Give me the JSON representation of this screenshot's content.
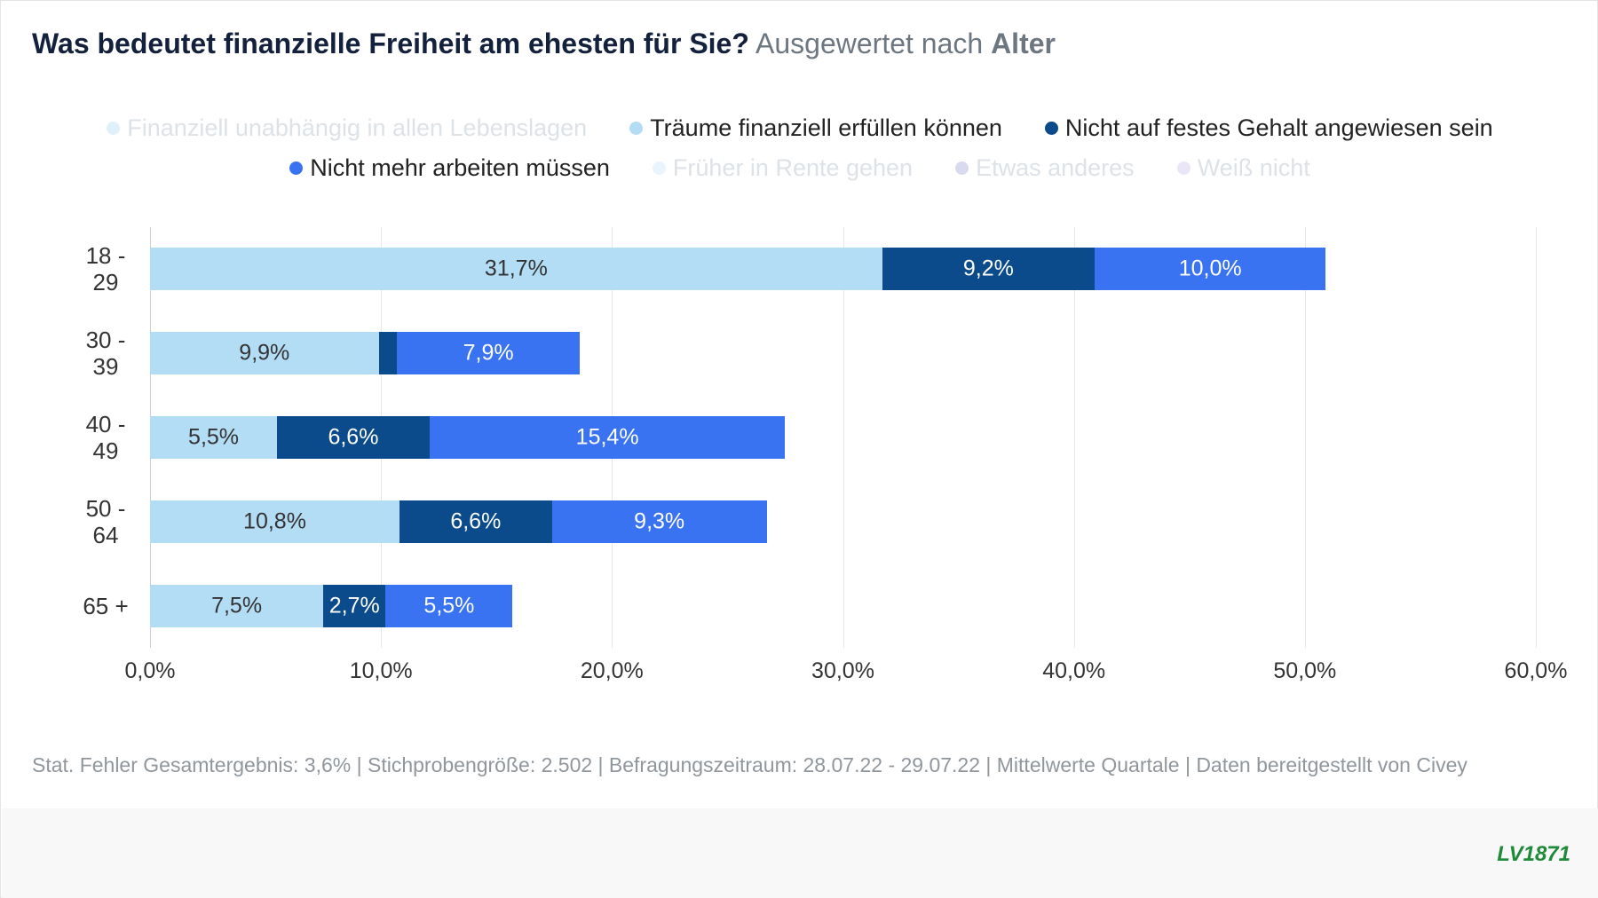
{
  "chart_data": {
    "type": "stacked_bar_horizontal",
    "title": "Was bedeutet finanzielle Freiheit am ehesten für Sie?",
    "subtitle": "Ausgewertet nach",
    "subtitle_emphasis": "Alter",
    "categories": [
      "18 - 29",
      "30 - 39",
      "40 - 49",
      "50 - 64",
      "65 +"
    ],
    "series": [
      {
        "name": "Finanziell unabhängig in allen Lebenslagen",
        "color": "#dff0fa",
        "visible": false,
        "values": [
          null,
          null,
          null,
          null,
          null
        ]
      },
      {
        "name": "Träume finanziell erfüllen können",
        "color": "#b3dcf5",
        "visible": true,
        "values": [
          31.7,
          9.9,
          5.5,
          10.8,
          7.5
        ],
        "value_labels": [
          "31,7%",
          "9,9%",
          "5,5%",
          "10,8%",
          "7,5%"
        ]
      },
      {
        "name": "Nicht auf festes Gehalt angewiesen sein",
        "color": "#0b4a8b",
        "visible": true,
        "values": [
          9.2,
          0.8,
          6.6,
          6.6,
          2.7
        ],
        "value_labels": [
          "9,2%",
          null,
          "6,6%",
          "6,6%",
          "2,7%"
        ]
      },
      {
        "name": "Nicht mehr arbeiten müssen",
        "color": "#3a73f2",
        "visible": true,
        "values": [
          10.0,
          7.9,
          15.4,
          9.3,
          5.5
        ],
        "value_labels": [
          "10,0%",
          "7,9%",
          "15,4%",
          "9,3%",
          "5,5%"
        ]
      },
      {
        "name": "Früher in Rente gehen",
        "color": "#eaf4fc",
        "visible": false,
        "values": [
          null,
          null,
          null,
          null,
          null
        ]
      },
      {
        "name": "Etwas anderes",
        "color": "#d8dbef",
        "visible": false,
        "values": [
          null,
          null,
          null,
          null,
          null
        ]
      },
      {
        "name": "Weiß nicht",
        "color": "#ebe5f8",
        "visible": false,
        "values": [
          null,
          null,
          null,
          null,
          null
        ]
      }
    ],
    "xlim": [
      0,
      60
    ],
    "xticks": [
      {
        "value": 0,
        "label": "0,0%"
      },
      {
        "value": 10,
        "label": "10,0%"
      },
      {
        "value": 20,
        "label": "20,0%"
      },
      {
        "value": 30,
        "label": "30,0%"
      },
      {
        "value": 40,
        "label": "40,0%"
      },
      {
        "value": 50,
        "label": "50,0%"
      },
      {
        "value": 60,
        "label": "60,0%"
      }
    ],
    "grid": true,
    "footer": "Stat. Fehler Gesamtergebnis: 3,6% | Stichprobengröße: 2.502 | Befragungszeitraum: 28.07.22 - 29.07.22 | Mittelwerte Quartale | Daten bereitgestellt von Civey",
    "logo": "LV1871"
  }
}
